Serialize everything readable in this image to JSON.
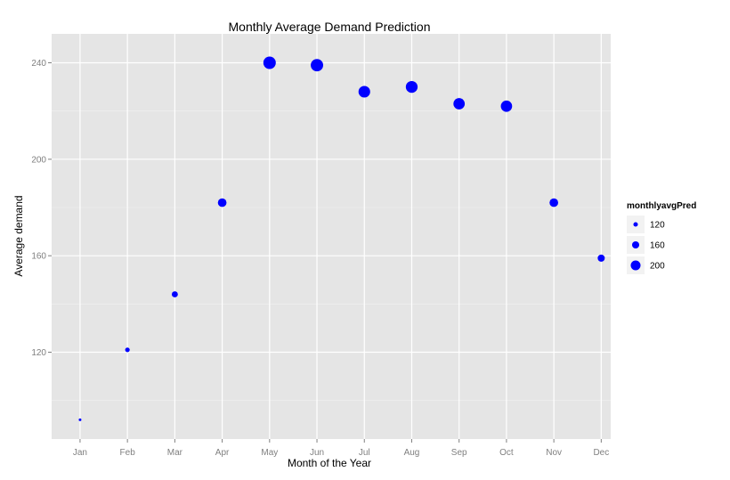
{
  "chart_data": {
    "type": "scatter",
    "title": "Monthly Average Demand Prediction",
    "xlabel": "Month of the Year",
    "ylabel": "Average demand",
    "categories": [
      "Jan",
      "Feb",
      "Mar",
      "Apr",
      "May",
      "Jun",
      "Jul",
      "Aug",
      "Sep",
      "Oct",
      "Nov",
      "Dec"
    ],
    "values": [
      92,
      121,
      144,
      182,
      240,
      239,
      228,
      230,
      223,
      222,
      182,
      159
    ],
    "ylim": [
      84,
      252
    ],
    "yticks": [
      120,
      160,
      200,
      240
    ],
    "point_color": "#0000ff",
    "panel_background": "#e5e5e5",
    "grid": true,
    "legend": {
      "title": "monthlyavgPred",
      "placement": "right",
      "entries": [
        {
          "label": "120",
          "value": 120
        },
        {
          "label": "160",
          "value": 160
        },
        {
          "label": "200",
          "value": 200
        }
      ]
    }
  }
}
